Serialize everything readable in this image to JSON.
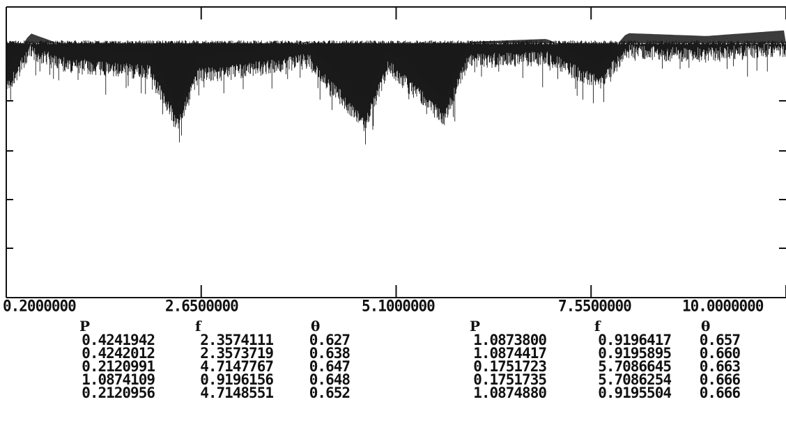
{
  "chart_data": {
    "type": "line",
    "x_range": [
      0.2,
      10.0
    ],
    "x_tick_labels": [
      "0.2000000",
      "2.6500000",
      "5.1000000",
      "7.5500000",
      "10.0000000"
    ],
    "x_ticks": [
      0.2,
      2.65,
      5.1,
      7.55,
      10.0
    ],
    "grid": false,
    "series": [
      {
        "values_description_only": false,
        "profile": [
          {
            "x": 0.2,
            "y": 0.72
          },
          {
            "x": 0.5,
            "y": 0.85
          },
          {
            "x": 0.8,
            "y": 0.82
          },
          {
            "x": 1.0,
            "y": 0.8
          },
          {
            "x": 1.2,
            "y": 0.8
          },
          {
            "x": 2.0,
            "y": 0.78
          },
          {
            "x": 2.36,
            "y": 0.6
          },
          {
            "x": 2.6,
            "y": 0.77
          },
          {
            "x": 3.0,
            "y": 0.78
          },
          {
            "x": 3.5,
            "y": 0.8
          },
          {
            "x": 4.0,
            "y": 0.82
          },
          {
            "x": 4.71,
            "y": 0.6
          },
          {
            "x": 5.0,
            "y": 0.8
          },
          {
            "x": 5.7,
            "y": 0.62
          },
          {
            "x": 6.0,
            "y": 0.82
          },
          {
            "x": 7.0,
            "y": 0.83
          },
          {
            "x": 7.65,
            "y": 0.74
          },
          {
            "x": 8.0,
            "y": 0.85
          },
          {
            "x": 9.0,
            "y": 0.84
          },
          {
            "x": 10.0,
            "y": 0.86
          }
        ]
      }
    ]
  },
  "table": {
    "headers": [
      "P",
      "f",
      "θ",
      "P",
      "f",
      "θ"
    ],
    "left": {
      "P": [
        "0.4241942",
        "0.4242012",
        "0.2120991",
        "1.0874109",
        "0.2120956"
      ],
      "f": [
        "2.3574111",
        "2.3573719",
        "4.7147767",
        "0.9196156",
        "4.7148551"
      ],
      "theta": [
        "0.627",
        "0.638",
        "0.647",
        "0.648",
        "0.652"
      ]
    },
    "right": {
      "P": [
        "1.0873800",
        "1.0874417",
        "0.1751723",
        "0.1751735",
        "1.0874880"
      ],
      "f": [
        "0.9196417",
        "0.9195895",
        "5.7086645",
        "5.7086254",
        "0.9195504"
      ],
      "theta": [
        "0.657",
        "0.660",
        "0.663",
        "0.666",
        "0.666"
      ]
    }
  }
}
